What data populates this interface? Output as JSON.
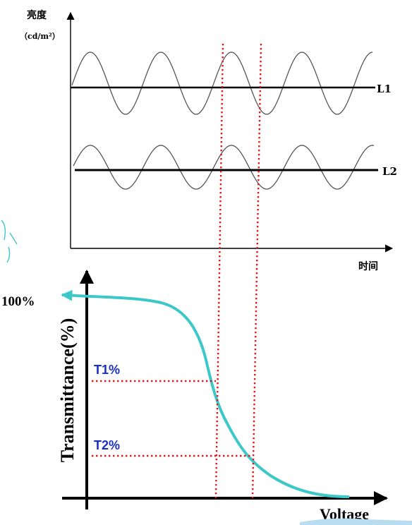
{
  "top_chart": {
    "y_label": "亮度",
    "y_unit": "（cd/m²）",
    "x_label": "时间",
    "line1_label": "L1",
    "line2_label": "L2"
  },
  "bottom_chart": {
    "y_label": "Transmittance(%)",
    "x_label": "Voltage",
    "max_label": "100%",
    "t1_label": "T1%",
    "t2_label": "T2%"
  },
  "colors": {
    "axis": "#000000",
    "sine": "#555555",
    "curve": "#3cc8c8",
    "guide": "#e01818",
    "t_text": "#1a2fbf"
  }
}
